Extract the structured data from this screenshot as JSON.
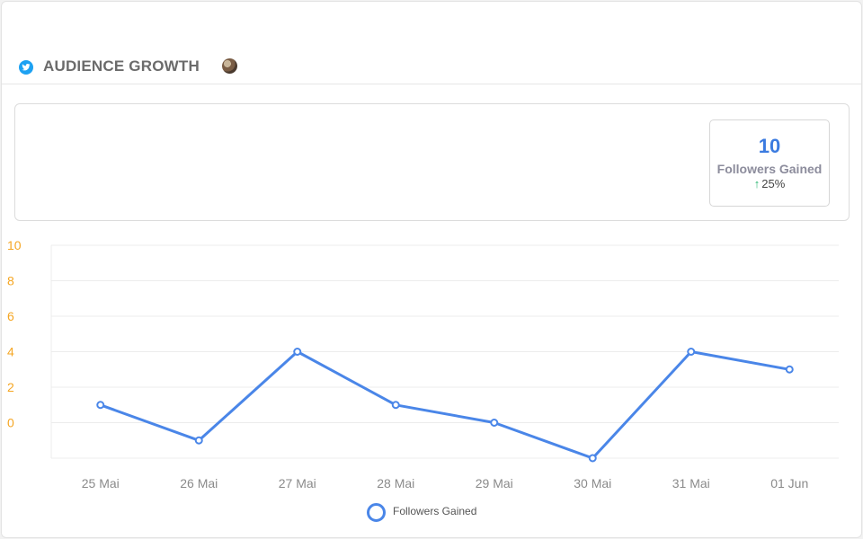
{
  "header": {
    "title": "AUDIENCE GROWTH",
    "network_icon": "twitter-icon",
    "avatar_icon": "avatar"
  },
  "summary": {
    "value": "10",
    "label": "Followers Gained",
    "change": "25%",
    "change_icon": "up-arrow-icon"
  },
  "colors": {
    "accent": "#3b7be0",
    "line": "#4a86e8",
    "y_ticks": "#f5a623",
    "up": "#2bb673"
  },
  "chart_data": {
    "type": "line",
    "categories": [
      "25 Mai",
      "26 Mai",
      "27 Mai",
      "28 Mai",
      "29 Mai",
      "30 Mai",
      "31 Mai",
      "01 Jun"
    ],
    "series": [
      {
        "name": "Followers Gained",
        "values": [
          1,
          -1,
          4,
          1,
          0,
          -2,
          4,
          3
        ]
      }
    ],
    "yticks": [
      "10",
      "8",
      "6",
      "4",
      "2",
      "0"
    ],
    "ylim": [
      -2,
      10
    ],
    "grid": true,
    "legend_position": "bottom-center"
  }
}
